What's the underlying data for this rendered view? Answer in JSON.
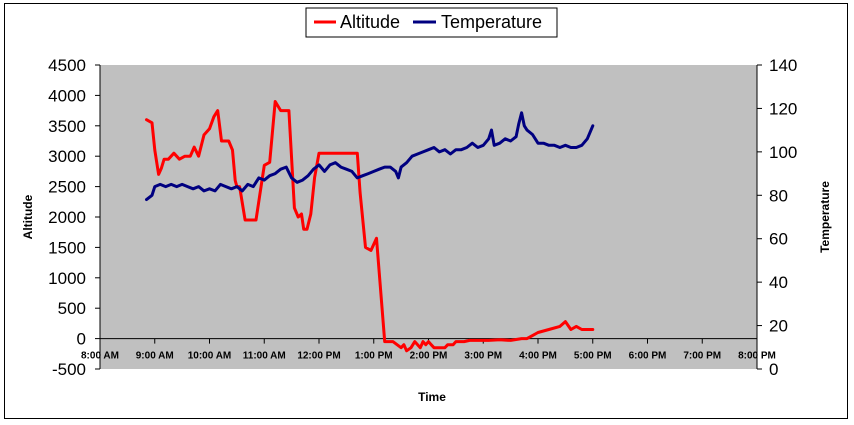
{
  "chart_data": {
    "type": "line",
    "title": "",
    "xlabel": "Time",
    "ylabel_left": "Altitude",
    "ylabel_right": "Temperature",
    "x_ticks": [
      "8:00 AM",
      "9:00 AM",
      "10:00 AM",
      "11:00 AM",
      "12:00 PM",
      "1:00 PM",
      "2:00 PM",
      "3:00 PM",
      "4:00 PM",
      "5:00 PM",
      "6:00 PM",
      "7:00 PM",
      "8:00 PM"
    ],
    "xlim_hours": [
      8,
      20
    ],
    "ylim_left": [
      -500,
      4500
    ],
    "y_ticks_left": [
      "4500",
      "4000",
      "3500",
      "3000",
      "2500",
      "2000",
      "1500",
      "1000",
      "500",
      "0",
      "-500"
    ],
    "ylim_right": [
      0,
      140
    ],
    "y_ticks_right": [
      "140",
      "120",
      "100",
      "80",
      "60",
      "40",
      "20",
      "0"
    ],
    "legend": {
      "position": "top-center",
      "entries": [
        "Altitude",
        "Temperature"
      ]
    },
    "series": [
      {
        "name": "Altitude",
        "color": "#ff0000",
        "axis": "left",
        "x": [
          8.85,
          8.95,
          9.0,
          9.07,
          9.12,
          9.17,
          9.25,
          9.35,
          9.45,
          9.55,
          9.65,
          9.72,
          9.8,
          9.9,
          10.0,
          10.08,
          10.15,
          10.22,
          10.3,
          10.35,
          10.42,
          10.47,
          10.5,
          10.55,
          10.65,
          10.75,
          10.85,
          10.95,
          11.0,
          11.1,
          11.2,
          11.3,
          11.45,
          11.55,
          11.62,
          11.68,
          11.72,
          11.78,
          11.85,
          11.92,
          12.0,
          12.1,
          12.2,
          12.3,
          12.4,
          12.5,
          12.6,
          12.7,
          12.75,
          12.85,
          12.95,
          13.05,
          13.2,
          13.35,
          13.5,
          13.55,
          13.6,
          13.68,
          13.75,
          13.8,
          13.85,
          13.9,
          13.95,
          14.0,
          14.05,
          14.1,
          14.2,
          14.3,
          14.35,
          14.4,
          14.45,
          14.5,
          14.55,
          14.65,
          14.75,
          14.9,
          15.1,
          15.3,
          15.5,
          15.7,
          15.8,
          15.9,
          16.0,
          16.2,
          16.4,
          16.5,
          16.6,
          16.7,
          16.8,
          16.9,
          17.0
        ],
        "values": [
          3600,
          3550,
          3100,
          2700,
          2800,
          2950,
          2950,
          3050,
          2950,
          3000,
          3000,
          3150,
          3000,
          3350,
          3450,
          3650,
          3750,
          3250,
          3250,
          3250,
          3100,
          2600,
          2500,
          2500,
          1950,
          1950,
          1950,
          2550,
          2850,
          2900,
          3900,
          3750,
          3750,
          2150,
          2000,
          2050,
          1800,
          1800,
          2050,
          2650,
          3050,
          3050,
          3050,
          3050,
          3050,
          3050,
          3050,
          3050,
          2400,
          1500,
          1450,
          1650,
          -50,
          -50,
          -150,
          -100,
          -200,
          -150,
          -50,
          -100,
          -150,
          -50,
          -100,
          -50,
          -100,
          -150,
          -150,
          -150,
          -100,
          -100,
          -100,
          -50,
          -50,
          -50,
          -30,
          -30,
          -30,
          -20,
          -30,
          0,
          0,
          50,
          100,
          150,
          200,
          280,
          150,
          200,
          150,
          150,
          150
        ]
      },
      {
        "name": "Temperature",
        "color": "#000080",
        "axis": "right",
        "x": [
          8.85,
          8.95,
          9.0,
          9.1,
          9.2,
          9.3,
          9.4,
          9.5,
          9.6,
          9.7,
          9.8,
          9.9,
          10.0,
          10.1,
          10.2,
          10.3,
          10.4,
          10.5,
          10.6,
          10.7,
          10.8,
          10.9,
          11.0,
          11.1,
          11.2,
          11.3,
          11.4,
          11.5,
          11.6,
          11.7,
          11.8,
          11.9,
          12.0,
          12.1,
          12.2,
          12.3,
          12.4,
          12.5,
          12.6,
          12.7,
          12.8,
          12.9,
          13.0,
          13.1,
          13.2,
          13.3,
          13.4,
          13.45,
          13.5,
          13.6,
          13.7,
          13.8,
          13.9,
          14.0,
          14.1,
          14.2,
          14.3,
          14.4,
          14.5,
          14.6,
          14.7,
          14.8,
          14.9,
          15.0,
          15.1,
          15.15,
          15.2,
          15.3,
          15.4,
          15.5,
          15.6,
          15.65,
          15.7,
          15.75,
          15.8,
          15.9,
          16.0,
          16.1,
          16.2,
          16.3,
          16.4,
          16.5,
          16.6,
          16.7,
          16.8,
          16.9,
          17.0
        ],
        "values": [
          78,
          80,
          84,
          85,
          84,
          85,
          84,
          85,
          84,
          83,
          84,
          82,
          83,
          82,
          85,
          84,
          83,
          84,
          82,
          85,
          84,
          88,
          87,
          89,
          90,
          92,
          93,
          88,
          86,
          87,
          89,
          92,
          94,
          91,
          94,
          95,
          93,
          92,
          91,
          88,
          89,
          90,
          91,
          92,
          93,
          93,
          91,
          88,
          93,
          95,
          98,
          99,
          100,
          101,
          102,
          100,
          101,
          99,
          101,
          101,
          102,
          104,
          102,
          103,
          106,
          110,
          103,
          104,
          106,
          105,
          107,
          113,
          118,
          112,
          110,
          108,
          104,
          104,
          103,
          103,
          102,
          103,
          102,
          102,
          103,
          106,
          112
        ]
      }
    ]
  }
}
